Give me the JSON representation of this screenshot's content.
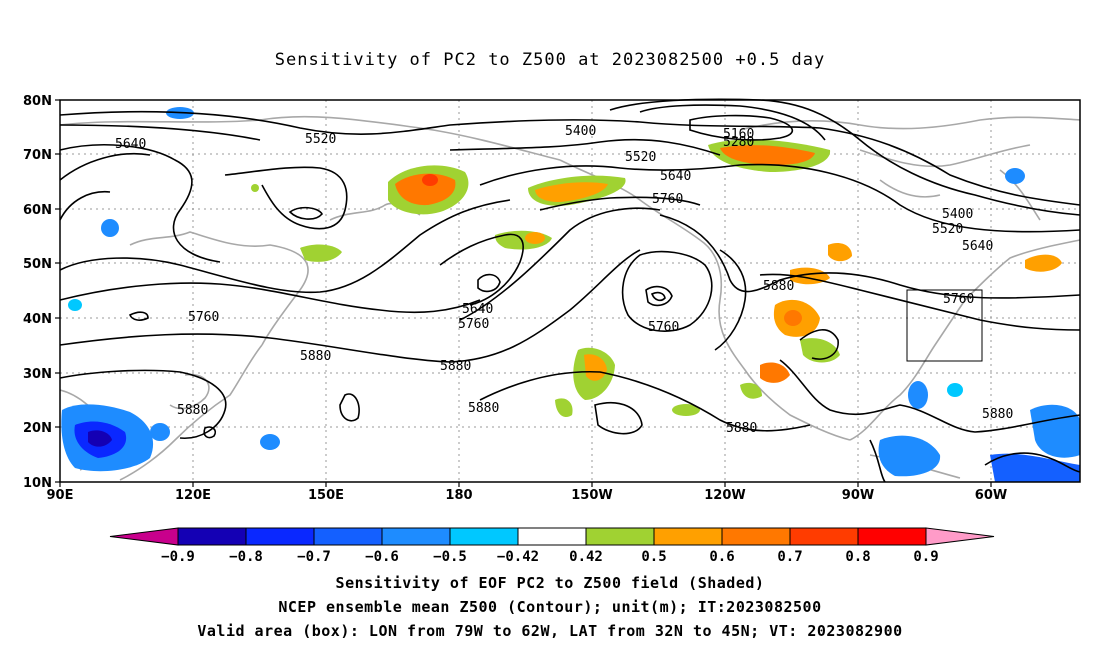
{
  "title": "Sensitivity of PC2 to Z500 at 2023082500 +0.5 day",
  "map": {
    "lat_labels": [
      "80N",
      "70N",
      "60N",
      "50N",
      "40N",
      "30N",
      "20N",
      "10N"
    ],
    "lon_labels": [
      "90E",
      "120E",
      "150E",
      "180",
      "150W",
      "120W",
      "90W",
      "60W"
    ],
    "contour_labels": [
      {
        "text": "5640",
        "name": "contour-5640-west"
      },
      {
        "text": "5520",
        "name": "contour-5520-top"
      },
      {
        "text": "5400",
        "name": "contour-5400-top"
      },
      {
        "text": "5160",
        "name": "contour-5160"
      },
      {
        "text": "5280",
        "name": "contour-5280"
      },
      {
        "text": "5520",
        "name": "contour-5520-mid"
      },
      {
        "text": "5640",
        "name": "contour-5640-mid"
      },
      {
        "text": "5760",
        "name": "contour-5760-mid"
      },
      {
        "text": "5400",
        "name": "contour-5400-east"
      },
      {
        "text": "5520",
        "name": "contour-5520-east"
      },
      {
        "text": "5640",
        "name": "contour-5640-east"
      },
      {
        "text": "5760",
        "name": "contour-5760-east"
      },
      {
        "text": "5880",
        "name": "contour-5880-east"
      },
      {
        "text": "5760",
        "name": "contour-5760-west"
      },
      {
        "text": "5880",
        "name": "contour-5880-west"
      },
      {
        "text": "5640",
        "name": "contour-5640-trough"
      },
      {
        "text": "5760",
        "name": "contour-5760-trough"
      },
      {
        "text": "5880",
        "name": "contour-5880-center"
      },
      {
        "text": "5760",
        "name": "contour-5760-low"
      },
      {
        "text": "5880",
        "name": "contour-5880-south"
      },
      {
        "text": "5880",
        "name": "contour-5880-sw"
      },
      {
        "text": "5880",
        "name": "contour-5880-ne"
      },
      {
        "text": "5880",
        "name": "contour-5880-se"
      }
    ],
    "valid_box": {
      "lon_from": "79W",
      "lon_to": "62W",
      "lat_from": "32N",
      "lat_to": "45N"
    }
  },
  "colorbar": {
    "ticks": [
      "-0.9",
      "-0.8",
      "-0.7",
      "-0.6",
      "-0.5",
      "-0.42",
      "0.42",
      "0.5",
      "0.6",
      "0.7",
      "0.8",
      "0.9"
    ],
    "colors": [
      "#1400b4",
      "#0a28ff",
      "#1460ff",
      "#1e8cff",
      "#00c8ff",
      "#ffffff",
      "#a0d232",
      "#ffa000",
      "#ff7800",
      "#ff3c00",
      "#ff0000"
    ],
    "end_colors": {
      "low": "#c8008c",
      "high": "#ff9bc8"
    }
  },
  "caption": {
    "line1": "Sensitivity of EOF PC2 to Z500 field (Shaded)",
    "line2": "NCEP ensemble mean Z500 (Contour); unit(m); IT:2023082500",
    "line3": "Valid area (box): LON from 79W to 62W, LAT from 32N to 45N; VT: 2023082900"
  }
}
